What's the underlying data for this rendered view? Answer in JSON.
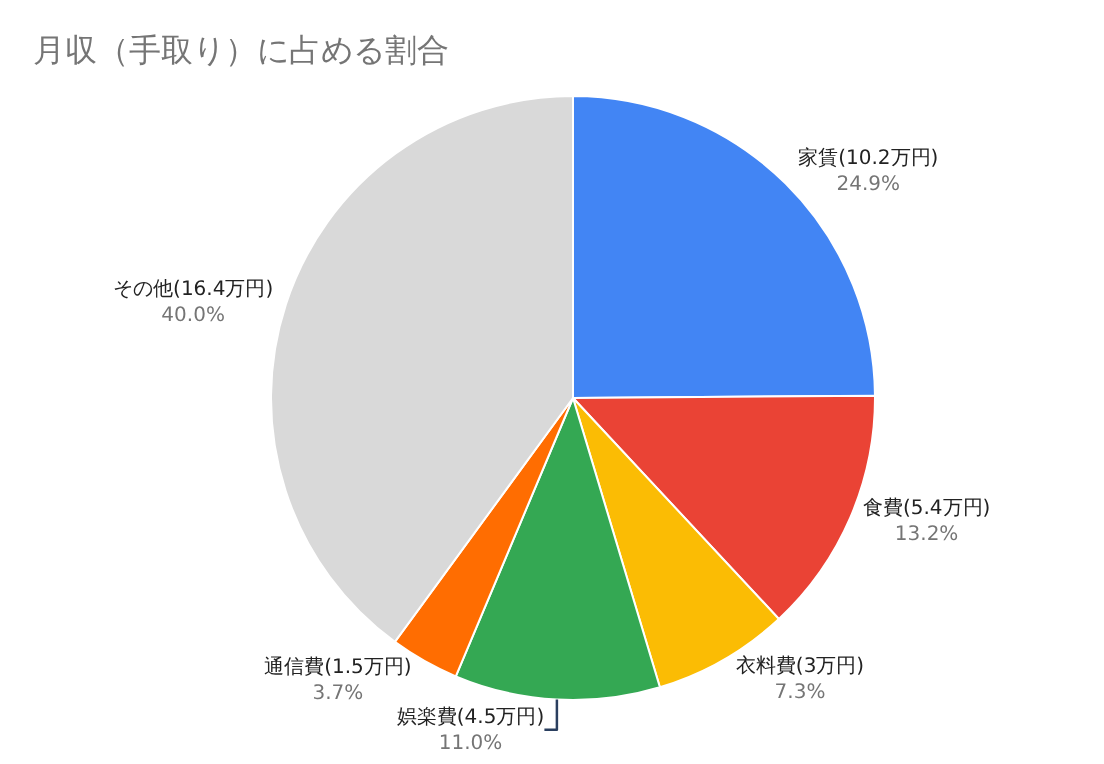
{
  "chart_data": {
    "type": "pie",
    "title": "月収（手取り）に占める割合",
    "categories": [
      "家賃(10.2万円)",
      "食費(5.4万円)",
      "衣料費(3万円)",
      "娯楽費(4.5万円)",
      "通信費(1.5万円)",
      "その他(16.4万円)"
    ],
    "values": [
      24.9,
      13.2,
      7.3,
      11.0,
      3.7,
      40.0
    ],
    "value_labels": [
      "24.9%",
      "13.2%",
      "7.3%",
      "11.0%",
      "3.7%",
      "40.0%"
    ],
    "colors": [
      "#4285f4",
      "#ea4335",
      "#fbbc04",
      "#34a853",
      "#ff6d01",
      "#d9d9d9"
    ],
    "legend": false
  }
}
